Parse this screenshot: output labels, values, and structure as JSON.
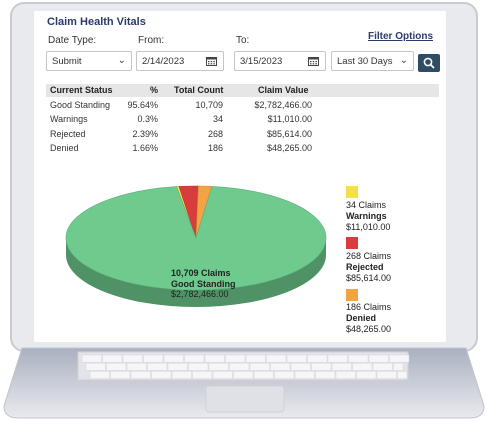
{
  "panel": {
    "title": "Claim Health Vitals",
    "filter_options": "Filter Options"
  },
  "filters": {
    "date_type_label": "Date Type:",
    "date_type_value": "Submit",
    "from_label": "From:",
    "from_value": "2/14/2023",
    "to_label": "To:",
    "to_value": "3/15/2023",
    "range_value": "Last 30 Days"
  },
  "table": {
    "headers": [
      "Current Status",
      "%",
      "Total Count",
      "Claim Value"
    ],
    "rows": [
      {
        "status": "Good Standing",
        "pct": "95.64%",
        "count": "10,709",
        "value": "$2,782,466.00"
      },
      {
        "status": "Warnings",
        "pct": "0.3%",
        "count": "34",
        "value": "$11,010.00"
      },
      {
        "status": "Rejected",
        "pct": "2.39%",
        "count": "268",
        "value": "$85,614.00"
      },
      {
        "status": "Denied",
        "pct": "1.66%",
        "count": "186",
        "value": "$48,265.00"
      }
    ]
  },
  "chart_data": {
    "type": "pie",
    "categories": [
      "Good Standing",
      "Warnings",
      "Rejected",
      "Denied"
    ],
    "values": [
      95.64,
      0.3,
      2.39,
      1.66
    ],
    "counts": [
      "10,709 Claims",
      "34 Claims",
      "268 Claims",
      "186 Claims"
    ],
    "amounts": [
      "$2,782,466.00",
      "$11,010.00",
      "$85,614.00",
      "$48,265.00"
    ],
    "colors": [
      "#6ecb8d",
      "#f5e04a",
      "#d93c3c",
      "#f2a445"
    ]
  },
  "legend": [
    {
      "count": "34 Claims",
      "name": "Warnings",
      "amount": "$11,010.00",
      "color": "#f5e04a"
    },
    {
      "count": "268 Claims",
      "name": "Rejected",
      "amount": "$85,614.00",
      "color": "#d93c3c"
    },
    {
      "count": "186 Claims",
      "name": "Denied",
      "amount": "$48,265.00",
      "color": "#f2a445"
    }
  ],
  "pie_label": {
    "count": "10,709 Claims",
    "name": "Good Standing",
    "amount": "$2,782,466.00"
  },
  "icons": {
    "date_picker": "calendar-icon",
    "search": "search-icon",
    "dropdown": "chevron-down-icon"
  }
}
